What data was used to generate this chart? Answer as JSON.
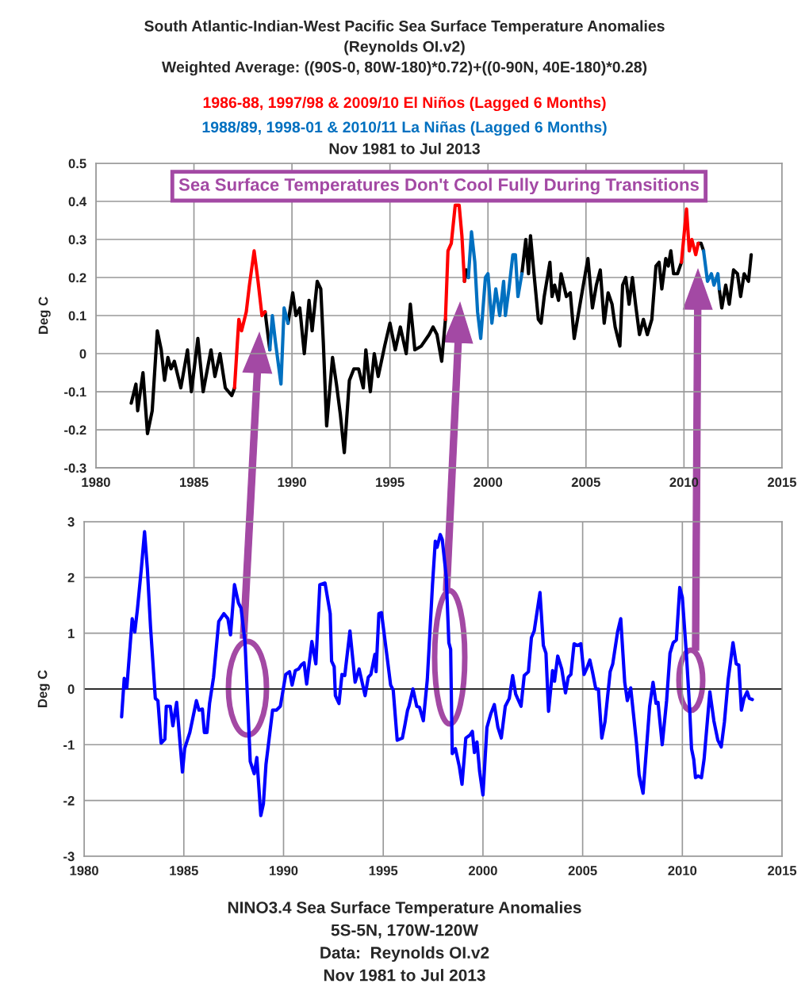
{
  "chart_data": [
    {
      "type": "line",
      "title": "South Atlantic-Indian-West Pacific Sea Surface Temperature Anomalies\n(Reynolds OI.v2)\nWeighted Average: ((90S-0, 80W-180)*0.72)+((0-90N, 40E-180)*0.28)",
      "subtitle": "Nov 1981 to Jul 2013",
      "ylabel": "Deg C",
      "xlim": [
        1980,
        2015
      ],
      "xticks": [
        1980,
        1985,
        1990,
        1995,
        2000,
        2005,
        2010,
        2015
      ],
      "ylim": [
        -0.3,
        0.5
      ],
      "yticks": [
        -0.3,
        -0.2,
        -0.1,
        0,
        0.1,
        0.2,
        0.3,
        0.4,
        0.5
      ],
      "grid": true,
      "legend": false,
      "annotations": [
        "Sea Surface Temperatures Don't Cool Fully During Transitions"
      ],
      "series": [
        {
          "color": "#000000",
          "x": [
            1981.8,
            1982.04,
            1982.13,
            1982.4,
            1982.63,
            1982.87,
            1983.13,
            1983.33,
            1983.5,
            1983.67,
            1983.83,
            1984.0,
            1984.33,
            1984.67,
            1984.87,
            1985.2,
            1985.47,
            1985.87,
            1986.07,
            1986.33,
            1986.6,
            1986.93,
            1987.07,
            1987.5,
            1988.63,
            1988.87,
            1989.3,
            1989.8,
            1990.04,
            1990.2,
            1990.4,
            1990.63,
            1990.87,
            1991.03,
            1991.29,
            1991.47,
            1991.6,
            1991.77,
            1992.07,
            1992.27,
            1992.47,
            1992.67,
            1992.93,
            1993.16,
            1993.4,
            1993.64,
            1993.77,
            1994.0,
            1994.2,
            1994.4,
            1994.73,
            1995.0,
            1995.27,
            1995.53,
            1995.83,
            1996.04,
            1996.27,
            1996.6,
            1997.0,
            1997.2,
            1997.4,
            1997.64,
            1997.83,
            1998.3,
            1998.8,
            1998.89,
            1999.0,
            2000.0,
            2001.73,
            2001.93,
            2002.07,
            2002.17,
            2002.33,
            2002.57,
            2002.71,
            2002.87,
            2003.16,
            2003.27,
            2003.4,
            2003.6,
            2003.73,
            2004.0,
            2004.2,
            2004.4,
            2004.73,
            2005.1,
            2005.33,
            2005.53,
            2005.73,
            2005.93,
            2006.13,
            2006.33,
            2006.49,
            2006.73,
            2006.87,
            2007.03,
            2007.2,
            2007.37,
            2007.53,
            2007.73,
            2007.93,
            2008.13,
            2008.36,
            2008.57,
            2008.73,
            2008.87,
            2009.07,
            2009.2,
            2009.33,
            2009.47,
            2009.67,
            2009.87,
            2010.3,
            2010.73,
            2010.87,
            2011.0,
            2011.4,
            2011.8,
            2011.93,
            2012.13,
            2012.31,
            2012.53,
            2012.73,
            2012.89,
            2013.07,
            2013.29,
            2013.43
          ],
          "values": [
            -0.13,
            -0.08,
            -0.15,
            -0.05,
            -0.21,
            -0.15,
            0.06,
            0.01,
            -0.07,
            -0.01,
            -0.04,
            -0.02,
            -0.09,
            0.01,
            -0.1,
            0.04,
            -0.1,
            0.01,
            -0.06,
            0.0,
            -0.09,
            -0.11,
            -0.09,
            null,
            0.11,
            0.01,
            null,
            0.08,
            0.16,
            0.1,
            0.12,
            0.0,
            0.14,
            0.06,
            0.19,
            0.17,
            0.03,
            -0.19,
            -0.01,
            -0.08,
            -0.16,
            -0.26,
            -0.07,
            -0.04,
            -0.04,
            -0.09,
            0.01,
            -0.1,
            0.0,
            -0.06,
            0.02,
            0.08,
            0.01,
            0.07,
            0.0,
            0.13,
            0.01,
            0.02,
            0.05,
            0.07,
            0.05,
            -0.02,
            0.09,
            null,
            0.19,
            0.22,
            0.2,
            null,
            0.21,
            0.3,
            0.21,
            0.31,
            0.22,
            0.09,
            0.08,
            0.15,
            0.24,
            0.15,
            0.18,
            0.14,
            0.21,
            0.15,
            0.16,
            0.04,
            0.14,
            0.25,
            0.12,
            0.18,
            0.22,
            0.08,
            0.16,
            0.13,
            0.07,
            0.02,
            0.18,
            0.2,
            0.13,
            0.2,
            0.13,
            0.05,
            0.09,
            0.05,
            0.09,
            0.23,
            0.24,
            0.17,
            0.25,
            0.23,
            0.27,
            0.21,
            0.21,
            0.24,
            null,
            0.29,
            0.29,
            0.27,
            null,
            0.17,
            0.12,
            0.18,
            0.13,
            0.22,
            0.21,
            0.15,
            0.21,
            0.19,
            0.26
          ]
        },
        {
          "name": "1986-88, 1997/98 & 2009/10 El Niños (Lagged 6 Months)",
          "color": "#ff0000",
          "x": [
            1987.07,
            1987.29,
            1987.43,
            1987.67,
            1987.83,
            1988.07,
            1988.27,
            1988.47,
            1988.63,
            1993.0,
            1997.83,
            1997.96,
            1998.13,
            1998.33,
            1998.53,
            1998.67,
            1998.8,
            2004.0,
            2009.87,
            2010.13,
            2010.27,
            2010.4,
            2010.6,
            2010.73
          ],
          "values": [
            -0.09,
            0.09,
            0.06,
            0.11,
            0.18,
            0.27,
            0.19,
            0.1,
            0.11,
            null,
            0.09,
            0.27,
            0.29,
            0.39,
            0.39,
            0.31,
            0.19,
            null,
            0.24,
            0.38,
            0.27,
            0.3,
            0.26,
            0.29
          ]
        },
        {
          "name": "1988/89, 1998-01 & 2010/11 La Niñas (Lagged 6 Months)",
          "color": "#0070c0",
          "x": [
            1988.87,
            1989.0,
            1989.16,
            1989.44,
            1989.6,
            1989.8,
            1995.0,
            1999.0,
            1999.16,
            1999.33,
            1999.47,
            1999.63,
            1999.87,
            2000.0,
            2000.2,
            2000.4,
            2000.6,
            2000.8,
            2000.89,
            2001.07,
            2001.27,
            2001.4,
            2001.53,
            2001.73,
            2006.0,
            2011.0,
            2011.2,
            2011.4,
            2011.53,
            2011.73,
            2011.8
          ],
          "values": [
            0.01,
            0.1,
            0.03,
            -0.08,
            0.12,
            0.08,
            null,
            0.2,
            0.32,
            0.24,
            0.11,
            0.04,
            0.2,
            0.21,
            0.08,
            0.17,
            0.1,
            0.19,
            0.1,
            0.17,
            0.26,
            0.26,
            0.15,
            0.21,
            null,
            0.27,
            0.19,
            0.21,
            0.18,
            0.21,
            0.17
          ]
        }
      ]
    },
    {
      "type": "line",
      "title": "NINO3.4 Sea Surface Temperature Anomalies\n5S-5N, 170W-120W\nData:  Reynolds OI.v2\nNov 1981 to Jul 2013",
      "ylabel": "Deg C",
      "xlim": [
        1980,
        2015
      ],
      "xticks": [
        1980,
        1985,
        1990,
        1995,
        2000,
        2005,
        2010,
        2015
      ],
      "ylim": [
        -3,
        3
      ],
      "yticks": [
        -3,
        -2,
        -1,
        0,
        1,
        2,
        3
      ],
      "grid": true,
      "legend": false,
      "ref_lines": [
        {
          "axis": "y",
          "value": 0,
          "color": "#000000"
        }
      ],
      "series": [
        {
          "color": "#0000ff",
          "x": [
            1981.88,
            1982.01,
            1982.14,
            1982.41,
            1982.54,
            1982.67,
            1982.87,
            1983.03,
            1983.17,
            1983.33,
            1983.57,
            1983.7,
            1983.86,
            1984.05,
            1984.12,
            1984.32,
            1984.45,
            1984.64,
            1984.93,
            1985.04,
            1985.3,
            1985.63,
            1985.76,
            1985.93,
            1986.03,
            1986.16,
            1986.29,
            1986.49,
            1986.75,
            1987.01,
            1987.21,
            1987.34,
            1987.54,
            1987.74,
            1987.87,
            1988.07,
            1988.33,
            1988.53,
            1988.66,
            1988.86,
            1988.99,
            1989.12,
            1989.25,
            1989.45,
            1989.64,
            1989.84,
            1990.11,
            1990.3,
            1990.43,
            1990.59,
            1990.76,
            1990.89,
            1991.03,
            1991.16,
            1991.42,
            1991.62,
            1991.82,
            1992.08,
            1992.34,
            1992.41,
            1992.54,
            1992.6,
            1992.78,
            1992.93,
            1993.07,
            1993.33,
            1993.59,
            1993.79,
            1994.09,
            1994.25,
            1994.38,
            1994.58,
            1994.64,
            1994.78,
            1994.91,
            1995.17,
            1995.37,
            1995.5,
            1995.7,
            1995.96,
            1996.09,
            1996.22,
            1996.29,
            1996.49,
            1996.68,
            1996.82,
            1997.01,
            1997.21,
            1997.47,
            1997.61,
            1997.7,
            1997.86,
            1997.96,
            1998.16,
            1998.29,
            1998.38,
            1998.46,
            1998.62,
            1998.82,
            1998.95,
            1999.14,
            1999.34,
            1999.47,
            1999.57,
            1999.7,
            1999.83,
            2000.0,
            2000.2,
            2000.39,
            2000.57,
            2000.75,
            2000.92,
            2001.12,
            2001.32,
            2001.49,
            2001.64,
            2001.91,
            2002.07,
            2002.28,
            2002.43,
            2002.57,
            2002.86,
            2003.03,
            2003.16,
            2003.29,
            2003.49,
            2003.59,
            2003.75,
            2003.95,
            2004.14,
            2004.28,
            2004.41,
            2004.57,
            2004.74,
            2004.91,
            2005.07,
            2005.22,
            2005.36,
            2005.49,
            2005.66,
            2005.79,
            2005.96,
            2006.12,
            2006.38,
            2006.51,
            2006.75,
            2006.91,
            2007.11,
            2007.24,
            2007.41,
            2007.7,
            2007.83,
            2008.03,
            2008.2,
            2008.36,
            2008.53,
            2008.68,
            2008.78,
            2008.99,
            2009.21,
            2009.38,
            2009.54,
            2009.7,
            2009.87,
            2010.0,
            2010.2,
            2010.36,
            2010.46,
            2010.57,
            2010.66,
            2010.79,
            2010.96,
            2011.09,
            2011.38,
            2011.58,
            2011.78,
            2011.95,
            2012.11,
            2012.3,
            2012.54,
            2012.7,
            2012.83,
            2012.96,
            2013.09,
            2013.25,
            2013.36,
            2013.51
          ],
          "values": [
            -0.5,
            0.19,
            0.02,
            1.26,
            1.02,
            1.42,
            2.16,
            2.82,
            2.16,
            1.11,
            -0.17,
            -0.21,
            -0.97,
            -0.9,
            -0.31,
            -0.31,
            -0.66,
            -0.24,
            -1.49,
            -1.07,
            -0.78,
            -0.21,
            -0.38,
            -0.36,
            -0.78,
            -0.78,
            -0.26,
            0.21,
            1.21,
            1.35,
            1.26,
            0.97,
            1.87,
            1.54,
            1.45,
            0.83,
            -1.3,
            -1.52,
            -1.23,
            -2.27,
            -2.06,
            -1.35,
            -0.97,
            -0.38,
            -0.38,
            -0.31,
            0.26,
            0.31,
            0.07,
            0.33,
            0.36,
            0.43,
            0.47,
            0.09,
            0.85,
            0.45,
            1.87,
            1.9,
            1.35,
            0.5,
            0.4,
            -0.12,
            -0.26,
            0.26,
            0.24,
            1.04,
            0.12,
            0.36,
            -0.12,
            0.21,
            0.26,
            0.62,
            0.31,
            1.35,
            1.37,
            0.64,
            0.07,
            -0.02,
            -0.92,
            -0.88,
            -0.64,
            -0.38,
            -0.31,
            0.0,
            -0.31,
            -0.33,
            -0.57,
            0.17,
            1.87,
            2.65,
            2.54,
            2.77,
            2.68,
            2.01,
            0.83,
            0.71,
            -1.16,
            -1.07,
            -1.4,
            -1.71,
            -0.88,
            -0.83,
            -0.76,
            -1.14,
            -0.95,
            -1.47,
            -1.9,
            -0.69,
            -0.45,
            -0.28,
            -0.69,
            -0.88,
            -0.31,
            -0.17,
            0.24,
            -0.09,
            -0.31,
            0.24,
            0.31,
            0.92,
            1.04,
            1.73,
            0.78,
            0.64,
            -0.4,
            0.33,
            0.14,
            0.59,
            0.36,
            -0.07,
            0.21,
            0.26,
            0.81,
            0.78,
            0.81,
            0.26,
            0.38,
            0.52,
            0.31,
            0.0,
            0.0,
            -0.88,
            -0.59,
            0.31,
            0.45,
            1.02,
            1.26,
            0.12,
            -0.21,
            0.02,
            -0.97,
            -1.54,
            -1.87,
            -1.07,
            -0.31,
            0.12,
            -0.26,
            -0.24,
            -1.0,
            -0.21,
            0.64,
            0.83,
            0.88,
            1.82,
            1.64,
            0.64,
            -0.31,
            -1.07,
            -1.26,
            -1.59,
            -1.56,
            -1.59,
            -1.26,
            -0.05,
            -0.57,
            -0.92,
            -1.04,
            -0.59,
            0.17,
            0.83,
            0.45,
            0.43,
            -0.38,
            -0.17,
            -0.05,
            -0.17,
            -0.19
          ]
        }
      ]
    }
  ]
}
